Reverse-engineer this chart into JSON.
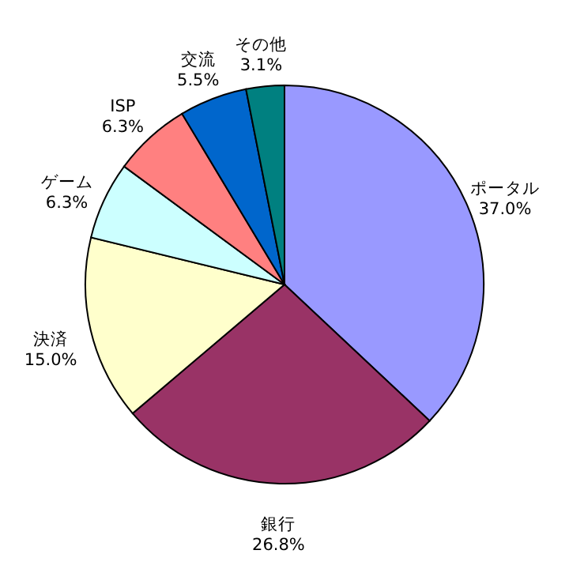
{
  "chart_data": {
    "type": "pie",
    "categories": [
      "ポータル",
      "銀行",
      "決済",
      "ゲーム",
      "ISP",
      "交流",
      "その他"
    ],
    "values": [
      37.0,
      26.8,
      15.0,
      6.3,
      6.3,
      5.5,
      3.1
    ],
    "value_labels": [
      "37.0%",
      "26.8%",
      "15.0%",
      "6.3%",
      "6.3%",
      "5.5%",
      "3.1%"
    ],
    "colors": [
      "#9999ff",
      "#993366",
      "#ffffcc",
      "#ccffff",
      "#ff8080",
      "#0066cc",
      "#008080"
    ]
  }
}
